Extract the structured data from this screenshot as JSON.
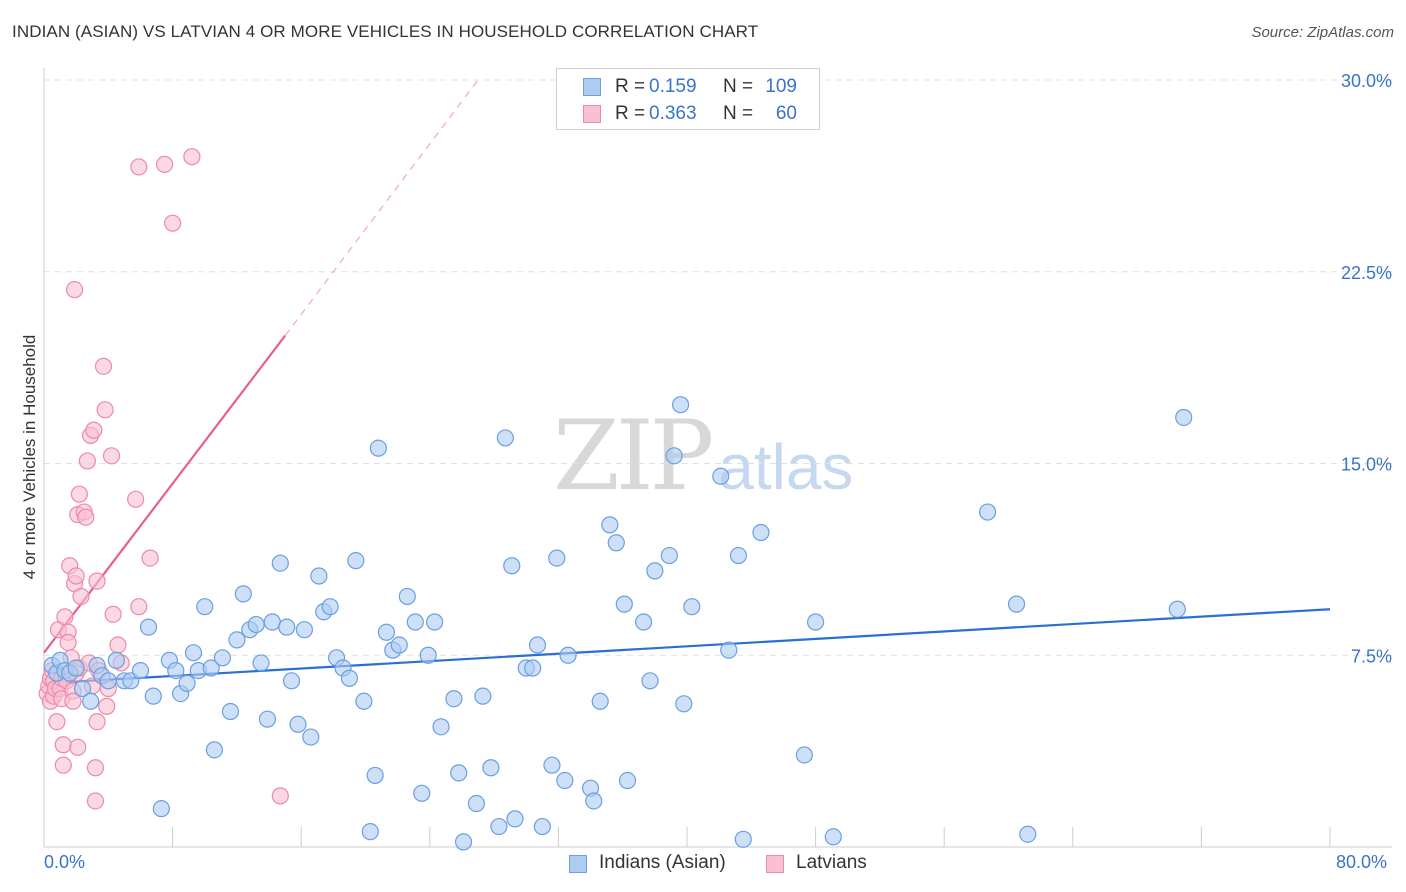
{
  "title": "INDIAN (ASIAN) VS LATVIAN 4 OR MORE VEHICLES IN HOUSEHOLD CORRELATION CHART",
  "source": "Source: ZipAtlas.com",
  "watermark": {
    "zip": "ZIP",
    "atlas": "atlas"
  },
  "colors": {
    "blue_fill": "#aecbf2",
    "blue_stroke": "#6a9fe0",
    "blue_line": "#2a6fd1",
    "pink_fill": "#f8c0d2",
    "pink_stroke": "#ec8aa9",
    "pink_line": "#e8608a",
    "axis_text": "#3a73c9",
    "grid": "#e0e0e0"
  },
  "stats": [
    {
      "r_label": "R =",
      "r_value": "0.159",
      "n_label": "N =",
      "n_value": "109"
    },
    {
      "r_label": "R =",
      "r_value": "0.363",
      "n_label": "N =",
      "n_value": "60"
    }
  ],
  "legend": [
    "Indians (Asian)",
    "Latvians"
  ],
  "chart_data": {
    "type": "scatter",
    "title": "INDIAN (ASIAN) VS LATVIAN 4 OR MORE VEHICLES IN HOUSEHOLD CORRELATION CHART",
    "xlabel": "",
    "ylabel": "4 or more Vehicles in Household",
    "xlim": [
      0,
      80
    ],
    "ylim": [
      0,
      30
    ],
    "x_tick_labels": [
      "0.0%",
      "80.0%"
    ],
    "y_ticks": [
      7.5,
      15.0,
      22.5,
      30.0
    ],
    "y_tick_labels": [
      "7.5%",
      "15.0%",
      "22.5%",
      "30.0%"
    ],
    "grid": "horizontal dashed",
    "legend_position": "bottom-center",
    "series": [
      {
        "name": "Indians (Asian)",
        "color": "#6a9fe0",
        "trend": {
          "x": [
            0,
            80
          ],
          "y": [
            6.4,
            9.3
          ]
        },
        "points": [
          [
            0.5,
            7.1
          ],
          [
            0.8,
            6.8
          ],
          [
            1.0,
            7.3
          ],
          [
            1.3,
            6.9
          ],
          [
            1.6,
            6.8
          ],
          [
            2.0,
            7.0
          ],
          [
            2.4,
            6.2
          ],
          [
            2.9,
            5.7
          ],
          [
            3.3,
            7.1
          ],
          [
            3.6,
            6.7
          ],
          [
            4.0,
            6.5
          ],
          [
            4.5,
            7.3
          ],
          [
            5.0,
            6.5
          ],
          [
            5.4,
            6.5
          ],
          [
            6.0,
            6.9
          ],
          [
            6.5,
            8.6
          ],
          [
            6.8,
            5.9
          ],
          [
            7.3,
            1.5
          ],
          [
            7.8,
            7.3
          ],
          [
            8.2,
            6.9
          ],
          [
            8.5,
            6.0
          ],
          [
            8.9,
            6.4
          ],
          [
            9.3,
            7.6
          ],
          [
            9.6,
            6.9
          ],
          [
            10.0,
            9.4
          ],
          [
            10.4,
            7.0
          ],
          [
            10.6,
            3.8
          ],
          [
            11.1,
            7.4
          ],
          [
            11.6,
            5.3
          ],
          [
            12.0,
            8.1
          ],
          [
            12.4,
            9.9
          ],
          [
            12.8,
            8.5
          ],
          [
            13.2,
            8.7
          ],
          [
            13.5,
            7.2
          ],
          [
            13.9,
            5.0
          ],
          [
            14.2,
            8.8
          ],
          [
            14.7,
            11.1
          ],
          [
            15.1,
            8.6
          ],
          [
            15.4,
            6.5
          ],
          [
            15.8,
            4.8
          ],
          [
            16.2,
            8.5
          ],
          [
            16.6,
            4.3
          ],
          [
            17.1,
            10.6
          ],
          [
            17.4,
            9.2
          ],
          [
            17.8,
            9.4
          ],
          [
            18.2,
            7.4
          ],
          [
            18.6,
            7.0
          ],
          [
            19.0,
            6.6
          ],
          [
            19.4,
            11.2
          ],
          [
            19.9,
            5.7
          ],
          [
            20.3,
            0.6
          ],
          [
            20.6,
            2.8
          ],
          [
            20.8,
            15.6
          ],
          [
            21.3,
            8.4
          ],
          [
            21.7,
            7.7
          ],
          [
            22.1,
            7.9
          ],
          [
            22.6,
            9.8
          ],
          [
            23.1,
            8.8
          ],
          [
            23.5,
            2.1
          ],
          [
            23.9,
            7.5
          ],
          [
            24.3,
            8.8
          ],
          [
            24.7,
            4.7
          ],
          [
            25.5,
            5.8
          ],
          [
            25.8,
            2.9
          ],
          [
            26.1,
            0.2
          ],
          [
            26.9,
            1.7
          ],
          [
            27.3,
            5.9
          ],
          [
            27.8,
            3.1
          ],
          [
            28.3,
            0.8
          ],
          [
            28.7,
            16.0
          ],
          [
            29.1,
            11.0
          ],
          [
            29.3,
            1.1
          ],
          [
            30.0,
            7.0
          ],
          [
            30.4,
            7.0
          ],
          [
            30.7,
            7.9
          ],
          [
            31.0,
            0.8
          ],
          [
            31.6,
            3.2
          ],
          [
            31.9,
            11.3
          ],
          [
            32.4,
            2.6
          ],
          [
            32.6,
            7.5
          ],
          [
            34.0,
            2.3
          ],
          [
            34.2,
            1.8
          ],
          [
            34.6,
            5.7
          ],
          [
            35.2,
            12.6
          ],
          [
            35.6,
            11.9
          ],
          [
            36.1,
            9.5
          ],
          [
            36.3,
            2.6
          ],
          [
            37.3,
            8.8
          ],
          [
            37.7,
            6.5
          ],
          [
            38.0,
            10.8
          ],
          [
            38.9,
            11.4
          ],
          [
            39.2,
            15.3
          ],
          [
            39.6,
            17.3
          ],
          [
            39.8,
            5.6
          ],
          [
            40.3,
            9.4
          ],
          [
            42.1,
            14.5
          ],
          [
            42.6,
            7.7
          ],
          [
            43.2,
            11.4
          ],
          [
            43.5,
            0.3
          ],
          [
            44.6,
            12.3
          ],
          [
            47.3,
            3.6
          ],
          [
            48.0,
            8.8
          ],
          [
            49.1,
            0.4
          ],
          [
            58.7,
            13.1
          ],
          [
            60.5,
            9.5
          ],
          [
            61.2,
            0.5
          ],
          [
            70.9,
            16.8
          ],
          [
            70.5,
            9.3
          ]
        ]
      },
      {
        "name": "Latvians",
        "color": "#ec8aa9",
        "trend": {
          "x": [
            0,
            15
          ],
          "y": [
            7.6,
            20.0
          ],
          "extended_dashed_to": [
            27,
            30.0
          ]
        },
        "points": [
          [
            0.2,
            6.0
          ],
          [
            0.3,
            6.3
          ],
          [
            0.4,
            6.6
          ],
          [
            0.4,
            5.7
          ],
          [
            0.5,
            6.9
          ],
          [
            0.6,
            6.5
          ],
          [
            0.6,
            5.9
          ],
          [
            0.7,
            6.2
          ],
          [
            0.8,
            4.9
          ],
          [
            0.9,
            8.5
          ],
          [
            1.0,
            6.2
          ],
          [
            1.1,
            6.6
          ],
          [
            1.1,
            5.8
          ],
          [
            1.2,
            4.0
          ],
          [
            1.2,
            3.2
          ],
          [
            1.3,
            9.0
          ],
          [
            1.4,
            6.5
          ],
          [
            1.5,
            8.4
          ],
          [
            1.5,
            8.0
          ],
          [
            1.6,
            11.0
          ],
          [
            1.7,
            7.4
          ],
          [
            1.8,
            6.1
          ],
          [
            1.8,
            5.7
          ],
          [
            1.9,
            10.3
          ],
          [
            1.9,
            21.8
          ],
          [
            2.0,
            10.6
          ],
          [
            2.0,
            6.8
          ],
          [
            2.1,
            13.0
          ],
          [
            2.1,
            3.9
          ],
          [
            2.2,
            7.0
          ],
          [
            2.2,
            13.8
          ],
          [
            2.3,
            9.8
          ],
          [
            2.5,
            13.1
          ],
          [
            2.6,
            12.9
          ],
          [
            2.7,
            15.1
          ],
          [
            2.8,
            7.2
          ],
          [
            2.9,
            16.1
          ],
          [
            3.0,
            6.3
          ],
          [
            3.1,
            16.3
          ],
          [
            3.2,
            3.1
          ],
          [
            3.2,
            1.8
          ],
          [
            3.3,
            4.9
          ],
          [
            3.3,
            10.4
          ],
          [
            3.4,
            6.9
          ],
          [
            3.7,
            18.8
          ],
          [
            3.8,
            17.1
          ],
          [
            3.9,
            5.5
          ],
          [
            4.0,
            6.2
          ],
          [
            4.2,
            15.3
          ],
          [
            4.3,
            9.1
          ],
          [
            4.6,
            7.9
          ],
          [
            4.8,
            7.2
          ],
          [
            5.7,
            13.6
          ],
          [
            5.9,
            26.6
          ],
          [
            5.9,
            9.4
          ],
          [
            6.6,
            11.3
          ],
          [
            7.5,
            26.7
          ],
          [
            8.0,
            24.4
          ],
          [
            9.2,
            27.0
          ],
          [
            14.7,
            2.0
          ]
        ]
      }
    ]
  }
}
